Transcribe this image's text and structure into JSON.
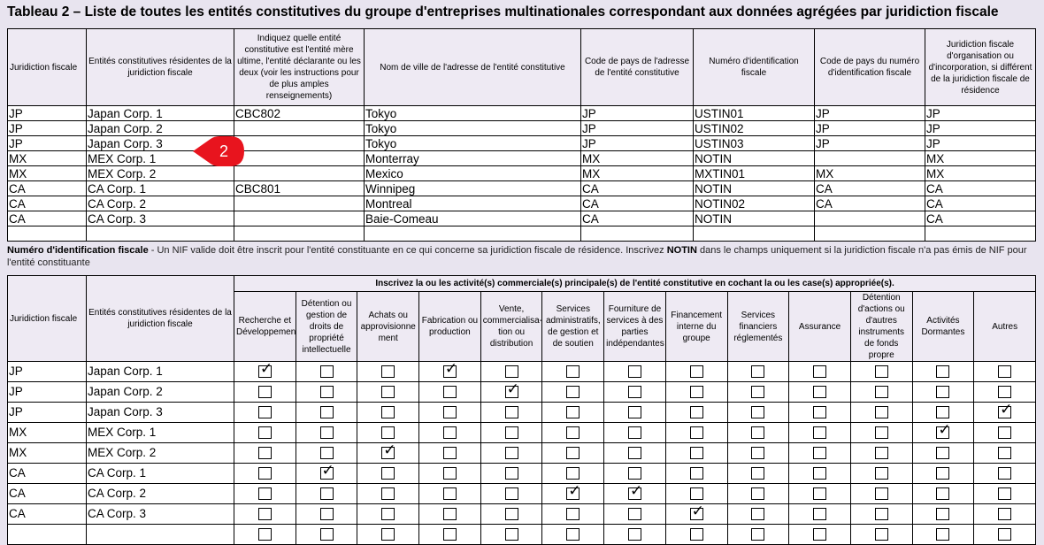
{
  "title": "Tableau 2 – Liste de toutes les entités constitutives du groupe d'entreprises multinationales correspondant aux données agrégées par juridiction fiscale",
  "table1": {
    "headers": [
      "Juridiction fiscale",
      "Entités constitutives résidentes de la juridiction fiscale",
      "Indiquez quelle entité constitutive est l'entité mère ultime, l'entité déclarante ou les deux (voir les instructions pour de plus amples renseignements)",
      "Nom de ville de l'adresse de l'entité constitutive",
      "Code de pays de l'adresse de l'entité constitutive",
      "Numéro d'identification fiscale",
      "Code de pays du numéro d'identification fiscale",
      "Juridiction fiscale d'organisation ou d'incorporation, si différent de la juridiction fiscale de résidence"
    ],
    "rows": [
      [
        "JP",
        "Japan Corp. 1",
        "CBC802",
        "Tokyo",
        "JP",
        "USTIN01",
        "JP",
        "JP"
      ],
      [
        "JP",
        "Japan Corp. 2",
        "",
        "Tokyo",
        "JP",
        "USTIN02",
        "JP",
        "JP"
      ],
      [
        "JP",
        "Japan Corp. 3",
        "",
        "Tokyo",
        "JP",
        "USTIN03",
        "JP",
        "JP"
      ],
      [
        "MX",
        "MEX Corp. 1",
        "",
        "Monterray",
        "MX",
        "NOTIN",
        "",
        "MX"
      ],
      [
        "MX",
        "MEX Corp. 2",
        "",
        "Mexico",
        "MX",
        "MXTIN01",
        "MX",
        "MX"
      ],
      [
        "CA",
        "CA Corp. 1",
        "CBC801",
        "Winnipeg",
        "CA",
        "NOTIN",
        "CA",
        "CA"
      ],
      [
        "CA",
        "CA Corp. 2",
        "",
        "Montreal",
        "CA",
        "NOTIN02",
        "CA",
        "CA"
      ],
      [
        "CA",
        "CA Corp. 3",
        "",
        "Baie-Comeau",
        "CA",
        "NOTIN",
        "",
        "CA"
      ],
      [
        "",
        "",
        "",
        "",
        "",
        "",
        "",
        ""
      ]
    ]
  },
  "note": {
    "label": "Numéro d'identification fiscale",
    "text1": " - Un NIF valide doit être inscrit pour l'entité constituante en ce qui concerne sa juridiction fiscale de résidence. Inscrivez ",
    "keyword": "NOTIN",
    "text2": " dans le champs uniquement si la juridiction fiscale n'a pas émis de NIF pour l'entité constituante"
  },
  "table2": {
    "col1": "Juridiction fiscale",
    "col2": "Entités constitutives résidentes de la juridiction fiscale",
    "group_header": "Inscrivez la ou les activité(s) commerciale(s) principale(s) de l'entité constitutive en cochant la ou les case(s) appropriée(s).",
    "activities": [
      "Recherche et Développement",
      "Détention ou gestion de droits de propriété intellectuelle",
      "Achats ou approvisionne ment",
      "Fabrication ou production",
      "Vente, commercialisa- tion ou distribution",
      "Services administratifs, de gestion et de soutien",
      "Fourniture de services à des parties indépendantes",
      "Financement interne du groupe",
      "Services financiers réglementés",
      "Assurance",
      "Détention d'actions ou d'autres instruments de fonds propre",
      "Activités Dormantes",
      "Autres"
    ],
    "rows": [
      {
        "jur": "JP",
        "entity": "Japan Corp. 1",
        "checks": [
          1,
          0,
          0,
          1,
          0,
          0,
          0,
          0,
          0,
          0,
          0,
          0,
          0
        ]
      },
      {
        "jur": "JP",
        "entity": "Japan Corp. 2",
        "checks": [
          0,
          0,
          0,
          0,
          1,
          0,
          0,
          0,
          0,
          0,
          0,
          0,
          0
        ]
      },
      {
        "jur": "JP",
        "entity": "Japan Corp. 3",
        "checks": [
          0,
          0,
          0,
          0,
          0,
          0,
          0,
          0,
          0,
          0,
          0,
          0,
          1
        ]
      },
      {
        "jur": "MX",
        "entity": "MEX Corp. 1",
        "checks": [
          0,
          0,
          0,
          0,
          0,
          0,
          0,
          0,
          0,
          0,
          0,
          1,
          0
        ]
      },
      {
        "jur": "MX",
        "entity": "MEX Corp. 2",
        "checks": [
          0,
          0,
          1,
          0,
          0,
          0,
          0,
          0,
          0,
          0,
          0,
          0,
          0
        ]
      },
      {
        "jur": "CA",
        "entity": "CA Corp. 1",
        "checks": [
          0,
          1,
          0,
          0,
          0,
          0,
          0,
          0,
          0,
          0,
          0,
          0,
          0
        ]
      },
      {
        "jur": "CA",
        "entity": "CA Corp. 2",
        "checks": [
          0,
          0,
          0,
          0,
          0,
          1,
          1,
          0,
          0,
          0,
          0,
          0,
          0
        ]
      },
      {
        "jur": "CA",
        "entity": "CA Corp. 3",
        "checks": [
          0,
          0,
          0,
          0,
          0,
          0,
          0,
          1,
          0,
          0,
          0,
          0,
          0
        ]
      },
      {
        "jur": "",
        "entity": "",
        "checks": [
          0,
          0,
          0,
          0,
          0,
          0,
          0,
          0,
          0,
          0,
          0,
          0,
          0
        ]
      }
    ]
  },
  "annotation": {
    "number": "2",
    "color": "#e8141e"
  },
  "checkmark_glyph": "✓"
}
